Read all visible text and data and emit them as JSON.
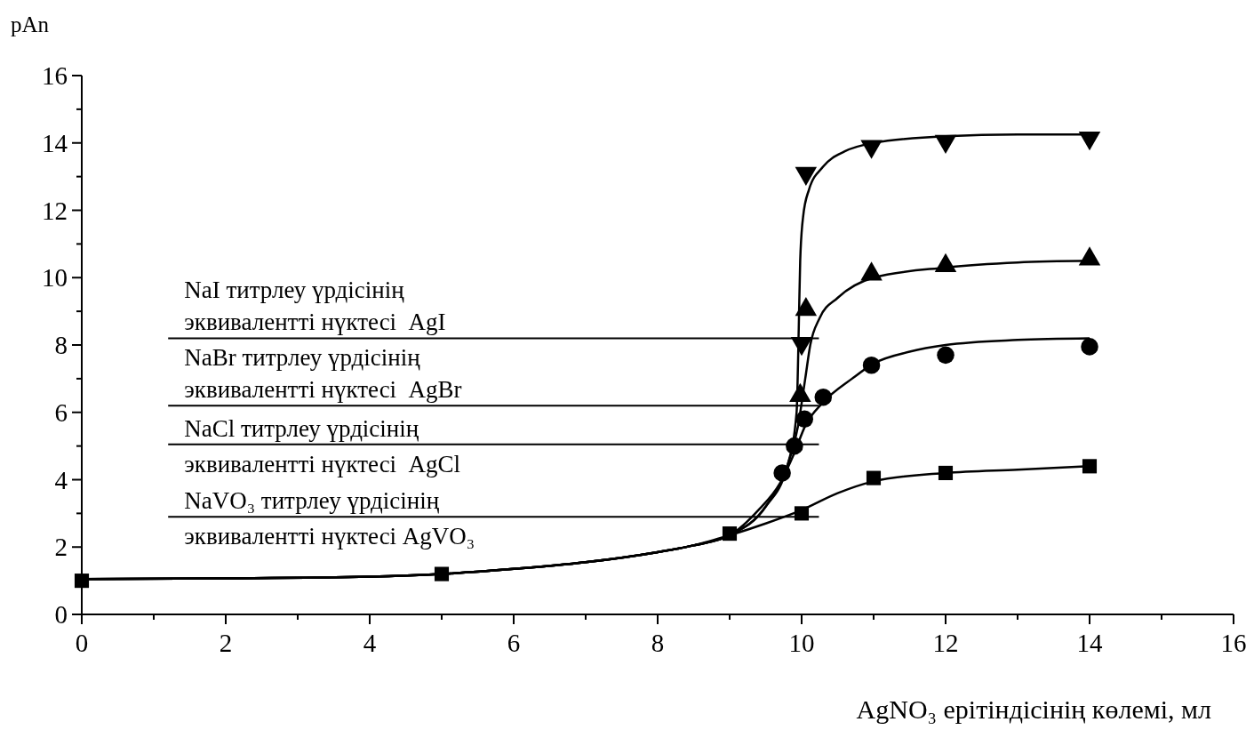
{
  "chart_data": {
    "type": "line",
    "ylabel": "pAn",
    "xlabel": "AgNO₃  ерітіндісінің көлемі, мл",
    "xlim": [
      0,
      16
    ],
    "ylim": [
      0,
      16
    ],
    "xticks": [
      0,
      {
        "value": 1,
        "label": null
      },
      2,
      {
        "value": 3,
        "label": null
      },
      4,
      {
        "value": 5,
        "label": null
      },
      6,
      {
        "value": 7,
        "label": null
      },
      8,
      {
        "value": 9,
        "label": null
      },
      10,
      {
        "value": 11,
        "label": null
      },
      12,
      {
        "value": 13,
        "label": null
      },
      14,
      {
        "value": 15,
        "label": null
      },
      16
    ],
    "yticks": [
      0,
      {
        "value": 1,
        "label": null
      },
      2,
      {
        "value": 3,
        "label": null
      },
      4,
      {
        "value": 5,
        "label": null
      },
      6,
      {
        "value": 7,
        "label": null
      },
      8,
      {
        "value": 9,
        "label": null
      },
      10,
      {
        "value": 11,
        "label": null
      },
      12,
      {
        "value": 13,
        "label": null
      },
      14,
      {
        "value": 15,
        "label": null
      },
      16
    ],
    "grid": false,
    "series": [
      {
        "type": "line",
        "marker": "none",
        "color": "#000000",
        "x": [
          0,
          2,
          4,
          5,
          6,
          7,
          8,
          8.5,
          9,
          9.5,
          10,
          10.5,
          11,
          12,
          13,
          14
        ],
        "values": [
          1.05,
          1.07,
          1.12,
          1.2,
          1.35,
          1.55,
          1.85,
          2.05,
          2.35,
          2.7,
          3.1,
          3.6,
          3.95,
          4.2,
          4.3,
          4.4
        ]
      },
      {
        "type": "line",
        "marker": "none",
        "color": "#000000",
        "x": [
          0,
          2,
          4,
          5,
          6,
          7,
          8,
          8.5,
          9,
          9.4,
          9.7,
          9.9,
          10.05,
          10.3,
          10.7,
          11,
          11.5,
          12,
          13,
          14
        ],
        "values": [
          1.05,
          1.07,
          1.12,
          1.2,
          1.35,
          1.55,
          1.85,
          2.05,
          2.35,
          3.1,
          3.9,
          4.8,
          5.6,
          6.3,
          7.0,
          7.45,
          7.8,
          8.0,
          8.15,
          8.2
        ]
      },
      {
        "type": "line",
        "marker": "none",
        "color": "#000000",
        "x": [
          0,
          2,
          4,
          5,
          6,
          7,
          8,
          8.5,
          9,
          9.5,
          9.8,
          9.95,
          10.05,
          10.12,
          10.25,
          10.5,
          11,
          12,
          13,
          14
        ],
        "values": [
          1.05,
          1.07,
          1.12,
          1.2,
          1.35,
          1.55,
          1.85,
          2.05,
          2.35,
          3.2,
          4.4,
          5.6,
          7.0,
          8.0,
          8.8,
          9.4,
          10.0,
          10.3,
          10.45,
          10.5
        ]
      },
      {
        "type": "line",
        "marker": "none",
        "color": "#000000",
        "x": [
          0,
          2,
          4,
          5,
          6,
          7,
          8,
          8.5,
          9,
          9.5,
          9.8,
          9.93,
          9.96,
          9.98,
          10.02,
          10.1,
          10.3,
          10.6,
          11,
          12,
          13,
          14
        ],
        "values": [
          1.05,
          1.07,
          1.12,
          1.2,
          1.35,
          1.55,
          1.85,
          2.05,
          2.35,
          3.2,
          4.4,
          6.0,
          8.5,
          10.5,
          11.8,
          12.6,
          13.3,
          13.75,
          14.0,
          14.2,
          14.25,
          14.25
        ]
      },
      {
        "type": "scatter",
        "marker": "square",
        "color": "#000000",
        "x": [
          0,
          5,
          9,
          10,
          11,
          12,
          14
        ],
        "values": [
          1.0,
          1.2,
          2.4,
          3.0,
          4.05,
          4.2,
          4.4
        ]
      },
      {
        "type": "scatter",
        "marker": "circle",
        "color": "#000000",
        "x": [
          9.73,
          9.9,
          10.04,
          10.3,
          10.97,
          12,
          14
        ],
        "values": [
          4.2,
          5.0,
          5.8,
          6.45,
          7.4,
          7.7,
          7.95
        ]
      },
      {
        "type": "scatter",
        "marker": "triangle",
        "color": "#000000",
        "x": [
          9.98,
          10.06,
          10.97,
          12,
          14
        ],
        "values": [
          6.5,
          9.05,
          10.1,
          10.35,
          10.55
        ]
      },
      {
        "type": "scatter",
        "marker": "triangle-down",
        "color": "#000000",
        "x": [
          10,
          10.06,
          10.97,
          12,
          14
        ],
        "values": [
          8.05,
          13.1,
          13.9,
          14.05,
          14.15
        ]
      }
    ],
    "ref_lines": [
      {
        "axis": "y",
        "value": 8.2,
        "label": "NaI титрлеу үрдісінің\nэквивалентті нүктесі  AgI"
      },
      {
        "axis": "y",
        "value": 6.2,
        "label": "NaBr титрлеу үрдісінің\nэквивалентті нүктесі  AgBr"
      },
      {
        "axis": "y",
        "value": 5.05,
        "label": "NaCl титрлеу үрдісінің\nэквивалентті нүктесі  AgCl"
      },
      {
        "axis": "y",
        "value": 2.9,
        "label": "NaVO₃ титрлеу үрдісінің\nэквивалентті нүктесі AgVO₃"
      }
    ]
  }
}
